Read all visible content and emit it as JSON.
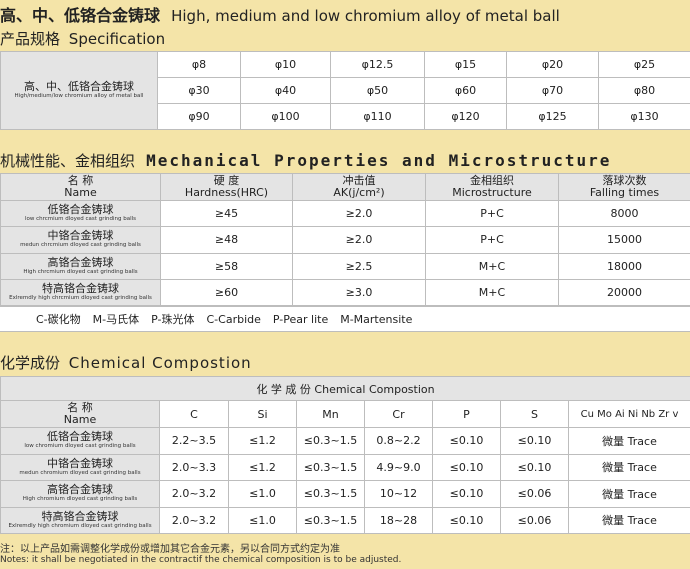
{
  "section1": {
    "title_cn": "高、中、低铬合金铸球",
    "title_en": "High, medium and low chromium alloy of metal ball",
    "spec_cn": "产品规格",
    "spec_en": "Specification",
    "row_label_cn": "高、中、低铬合金铸球",
    "row_label_en": "High/medium/low chromium alloy of metal ball",
    "sizes": [
      [
        "φ8",
        "φ10",
        "φ12.5",
        "φ15",
        "φ20",
        "φ25"
      ],
      [
        "φ30",
        "φ40",
        "φ50",
        "φ60",
        "φ70",
        "φ80"
      ],
      [
        "φ90",
        "φ100",
        "φ110",
        "φ120",
        "φ125",
        "φ130"
      ]
    ]
  },
  "section2": {
    "title_cn": "机械性能、金相组织",
    "title_en": "Mechanical Properties and Microstructure",
    "headers": [
      {
        "cn": "名  称",
        "en": "Name"
      },
      {
        "cn": "硬  度",
        "en": "Hardness(HRC)"
      },
      {
        "cn": "冲击值",
        "en": "AK(j/cm²)"
      },
      {
        "cn": "金相组织",
        "en": "Microstructure"
      },
      {
        "cn": "落球次数",
        "en": "Falling times"
      }
    ],
    "rows": [
      {
        "cn": "低铬合金铸球",
        "en": "low chrcmium dloyed cast grinding balls",
        "hardness": "≥45",
        "ak": "≥2.0",
        "micro": "P+C",
        "falling": "8000"
      },
      {
        "cn": "中铬合金铸球",
        "en": "medun chrcmium dloyed cast grinding balls",
        "hardness": "≥48",
        "ak": "≥2.0",
        "micro": "P+C",
        "falling": "15000"
      },
      {
        "cn": "高铬合金铸球",
        "en": "High chrcmium dloyed cast grinding balls",
        "hardness": "≥58",
        "ak": "≥2.5",
        "micro": "M+C",
        "falling": "18000"
      },
      {
        "cn": "特高铬合金铸球",
        "en": "Exlremdly high chrcmium dloyed cast grinding balls",
        "hardness": "≥60",
        "ak": "≥3.0",
        "micro": "M+C",
        "falling": "20000"
      }
    ],
    "legend": [
      "C-碳化物",
      "M-马氏体",
      "P-珠光体",
      "C-Carbide",
      "P-Pear lite",
      "M-Martensite"
    ]
  },
  "section3": {
    "title_cn": "化学成份",
    "title_en": "Chemical Compostion",
    "table_title": "化  学  成  份  Chemical Compostion",
    "name_cn": "名  称",
    "name_en": "Name",
    "elements": [
      "C",
      "Si",
      "Mn",
      "Cr",
      "P",
      "S",
      "Cu Mo Ai Ni Nb Zr v"
    ],
    "rows": [
      {
        "cn": "低铬合金铸球",
        "en": "low chromium dloyed cast grinding balls",
        "vals": [
          "2.2~3.5",
          "≤1.2",
          "≤0.3~1.5",
          "0.8~2.2",
          "≤0.10",
          "≤0.10",
          "微量 Trace"
        ]
      },
      {
        "cn": "中铬合金铸球",
        "en": "medun chromium dloyed cast grinding balls",
        "vals": [
          "2.0~3.3",
          "≤1.2",
          "≤0.3~1.5",
          "4.9~9.0",
          "≤0.10",
          "≤0.10",
          "微量 Trace"
        ]
      },
      {
        "cn": "高铬合金铸球",
        "en": "High chromium dloyed cast grinding balls",
        "vals": [
          "2.0~3.2",
          "≤1.0",
          "≤0.3~1.5",
          "10~12",
          "≤0.10",
          "≤0.06",
          "微量 Trace"
        ]
      },
      {
        "cn": "特高铬合金铸球",
        "en": "Exlremdly high chromium dloyed cast grinding balls",
        "vals": [
          "2.0~3.2",
          "≤1.0",
          "≤0.3~1.5",
          "18~28",
          "≤0.10",
          "≤0.06",
          "微量 Trace"
        ]
      }
    ]
  },
  "note": {
    "cn": "注：以上产品如需调整化学成份或增加其它合金元素，另以合同方式约定为准",
    "en": "Notes: it shall be negotiated in the contractif the chemical composition is to be adjusted."
  }
}
